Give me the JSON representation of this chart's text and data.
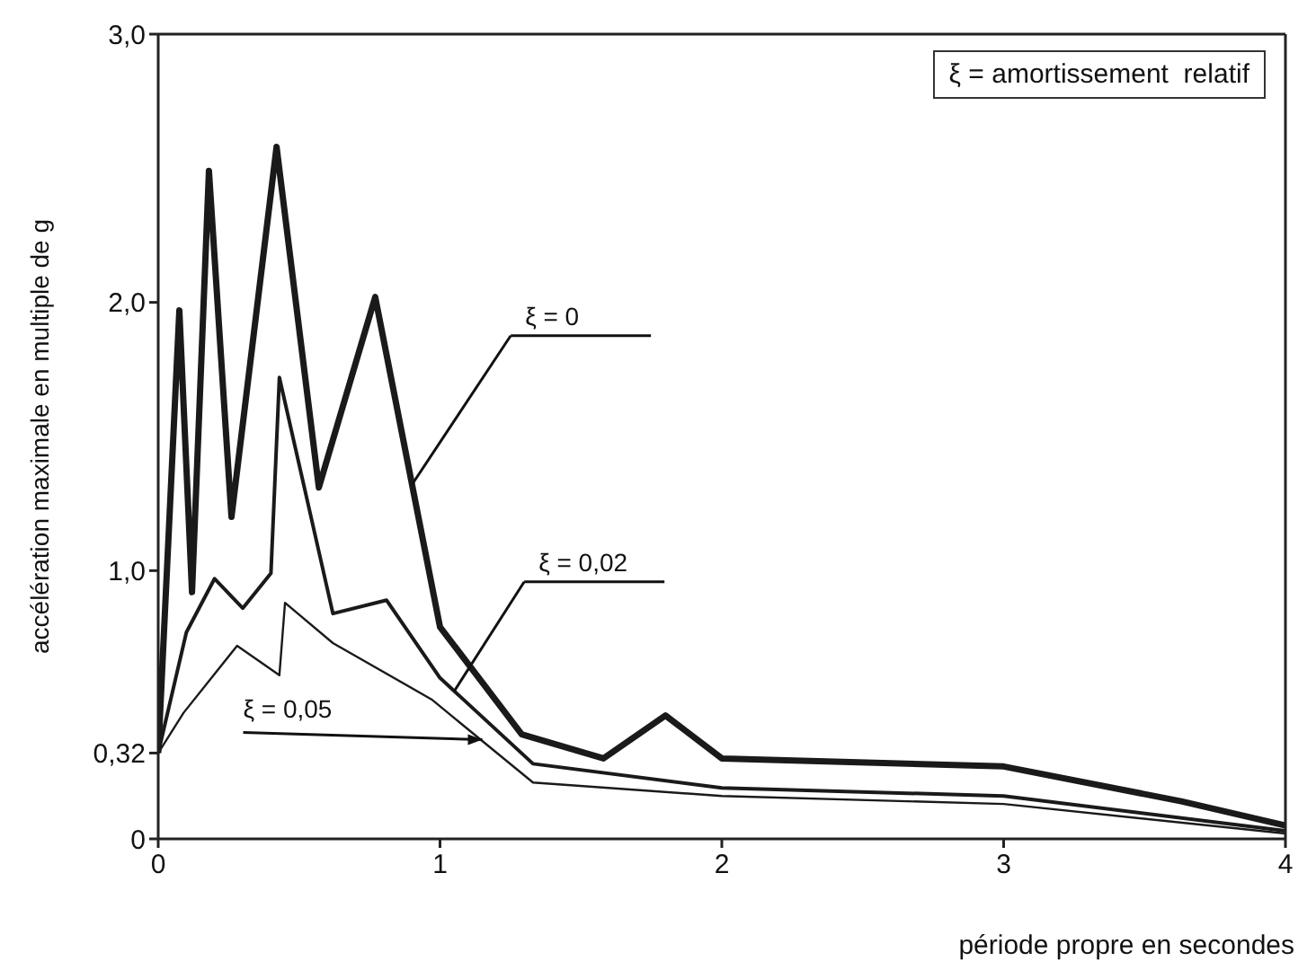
{
  "chart_data": {
    "type": "line",
    "xlabel": "période propre en secondes",
    "ylabel": "accélération maximale en multiple de g",
    "xlim": [
      0,
      4
    ],
    "xticks": [
      0,
      1,
      2,
      3,
      4
    ],
    "ylim": [
      0,
      3
    ],
    "yticks": [
      {
        "value": 0,
        "label": "0"
      },
      {
        "value": 0.32,
        "label": "0,32"
      },
      {
        "value": 1,
        "label": "1,0"
      },
      {
        "value": 2,
        "label": "2,0"
      },
      {
        "value": 3,
        "label": "3,0"
      }
    ],
    "legend": false,
    "marker": "none",
    "line_style": "solid",
    "series": [
      {
        "color": "#1a1a1a",
        "x": [
          0,
          0.075,
          0.12,
          0.18,
          0.26,
          0.42,
          0.57,
          0.77,
          1.0,
          1.29,
          1.58,
          1.8,
          2.0,
          3.0,
          3.63,
          4.0
        ],
        "values": [
          0.32,
          1.97,
          0.92,
          2.49,
          1.2,
          2.58,
          1.31,
          2.02,
          0.79,
          0.39,
          0.3,
          0.46,
          0.3,
          0.27,
          0.14,
          0.05
        ]
      },
      {
        "color": "#1a1a1a",
        "x": [
          0,
          0.1,
          0.2,
          0.3,
          0.4,
          0.43,
          0.62,
          0.81,
          1.0,
          1.33,
          2.0,
          3.0,
          4.0
        ],
        "values": [
          0.32,
          0.77,
          0.97,
          0.86,
          0.99,
          1.72,
          0.84,
          0.89,
          0.6,
          0.28,
          0.19,
          0.16,
          0.03
        ]
      },
      {
        "color": "#1a1a1a",
        "x": [
          0,
          0.09,
          0.28,
          0.43,
          0.45,
          0.62,
          0.97,
          1.33,
          2.0,
          3.0,
          4.0
        ],
        "values": [
          0.32,
          0.47,
          0.72,
          0.61,
          0.88,
          0.73,
          0.52,
          0.21,
          0.16,
          0.13,
          0.02
        ]
      }
    ],
    "annotations": [
      {
        "text": "ξ = 0",
        "x": 0.9,
        "y": 1.32
      },
      {
        "text": "ξ = 0,02",
        "x": 1.05,
        "y": 0.55
      },
      {
        "text": "ξ = 0,05",
        "x": 1.15,
        "y": 0.37
      },
      "ξ = amortissement  relatif"
    ]
  }
}
